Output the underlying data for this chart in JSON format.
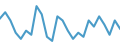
{
  "values": [
    60,
    75,
    55,
    25,
    10,
    30,
    20,
    90,
    70,
    15,
    5,
    65,
    55,
    30,
    10,
    25,
    15,
    55,
    40,
    65,
    45,
    20,
    55,
    35
  ],
  "line_color": "#4a9cc8",
  "background_color": "#ffffff",
  "ylim": [
    -5,
    105
  ],
  "linewidth": 1.5
}
